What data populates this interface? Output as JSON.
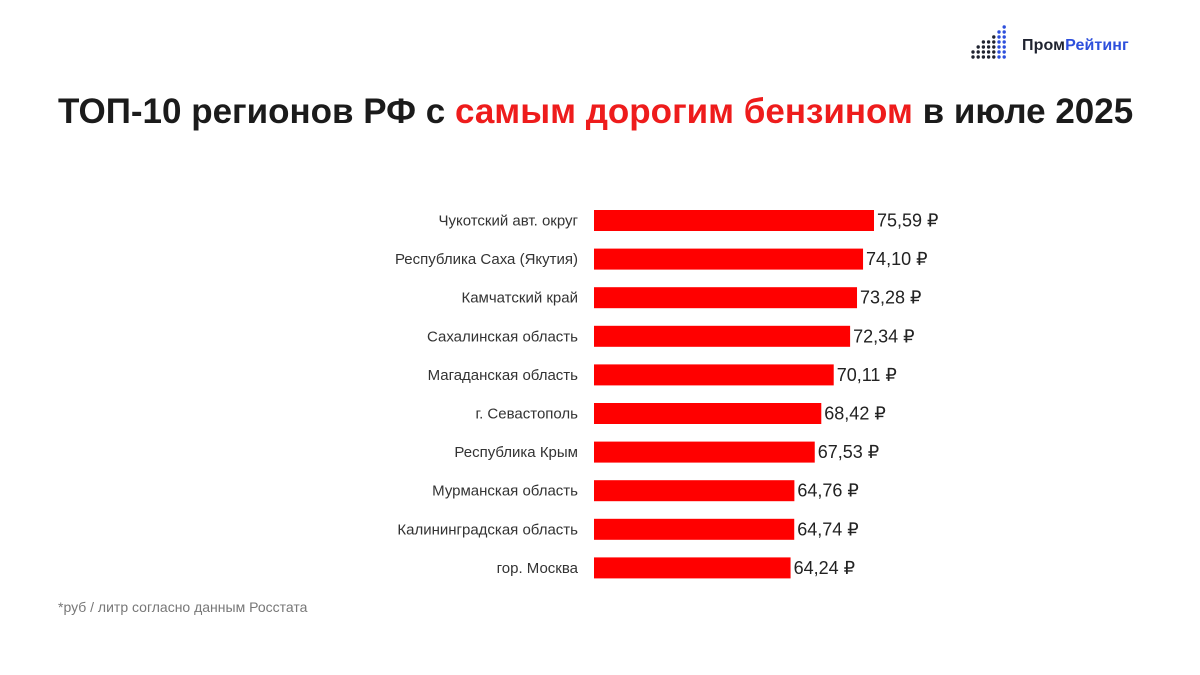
{
  "brand": {
    "name_part1": "Пром",
    "name_part2": "Рейтинг",
    "colors": {
      "dark": "#1f2330",
      "accent": "#2d4fdc"
    }
  },
  "title": {
    "part1": "ТОП-10 регионов РФ с ",
    "highlight": "самым дорогим бензином",
    "part2": " в июле 2025"
  },
  "footnote": "*руб / литр согласно данным Росстата",
  "colors": {
    "bar": "#ff0000",
    "title_accent": "#ee1c1c"
  },
  "chart_data": {
    "type": "bar",
    "orientation": "horizontal",
    "categories": [
      "Чукотский авт. округ",
      "Республика Саха (Якутия)",
      "Камчатский край",
      "Сахалинская область",
      "Магаданская область",
      "г. Севастополь",
      "Республика Крым",
      "Мурманская область",
      "Калининградская область",
      "гор. Москва"
    ],
    "values": [
      75.59,
      74.1,
      73.28,
      72.34,
      70.11,
      68.42,
      67.53,
      64.76,
      64.74,
      64.24
    ],
    "value_labels": [
      "75,59 ₽",
      "74,10 ₽",
      "73,28 ₽",
      "72,34 ₽",
      "70,11 ₽",
      "68,42 ₽",
      "67,53 ₽",
      "64,76 ₽",
      "64,74 ₽",
      "64,24 ₽"
    ],
    "xlim": [
      37.5,
      75.59
    ],
    "grid": false,
    "title": "",
    "xlabel": "",
    "ylabel": ""
  }
}
